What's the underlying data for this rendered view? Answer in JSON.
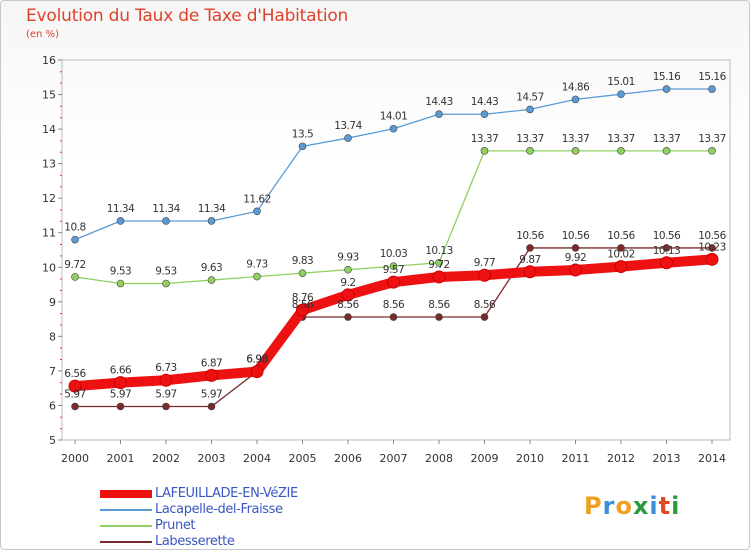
{
  "title": "Evolution du Taux de Taxe d'Habitation",
  "subtitle": "(en %)",
  "logo": {
    "letters": [
      "P",
      "r",
      "o",
      "x",
      "i",
      "t",
      "i"
    ],
    "colors": [
      "#f0a020",
      "#3b8fd8",
      "#f0a020",
      "#2a9b3a",
      "#3b8fd8",
      "#e04a20",
      "#2a9b3a"
    ]
  },
  "chart_data": {
    "type": "line",
    "x": [
      "2000",
      "2001",
      "2002",
      "2003",
      "2004",
      "2005",
      "2006",
      "2007",
      "2008",
      "2009",
      "2010",
      "2011",
      "2012",
      "2013",
      "2014"
    ],
    "ylim": [
      5,
      16
    ],
    "yticks": [
      "5",
      "6",
      "7",
      "8",
      "9",
      "10",
      "11",
      "12",
      "13",
      "14",
      "15",
      "16"
    ],
    "grid": false,
    "legend_placement": "bottom-left",
    "series": [
      {
        "name": "LAFEUILLADE-EN-VéZIE",
        "color": "#ee1111",
        "values": [
          6.56,
          6.66,
          6.73,
          6.87,
          6.98,
          8.76,
          9.2,
          9.57,
          9.72,
          9.77,
          9.87,
          9.92,
          10.02,
          10.13,
          10.23
        ],
        "labels": [
          "6.56",
          "6.66",
          "6.73",
          "6.87",
          "6.98",
          "8.76",
          "9.2",
          "9.57",
          "9.72",
          "9.77",
          "9.87",
          "9.92",
          "10.02",
          "10.13",
          "10.23"
        ]
      },
      {
        "name": "Lacapelle-del-Fraisse",
        "color": "#5b9bd5",
        "values": [
          10.8,
          11.34,
          11.34,
          11.34,
          11.62,
          13.5,
          13.74,
          14.01,
          14.43,
          14.43,
          14.57,
          14.86,
          15.01,
          15.16,
          15.16
        ],
        "labels": [
          "10.8",
          "11.34",
          "11.34",
          "11.34",
          "11.62",
          "13.5",
          "13.74",
          "14.01",
          "14.43",
          "14.43",
          "14.57",
          "14.86",
          "15.01",
          "15.16",
          "15.16"
        ]
      },
      {
        "name": "Prunet",
        "color": "#90d060",
        "values": [
          9.72,
          9.53,
          9.53,
          9.63,
          9.73,
          9.83,
          9.93,
          10.03,
          10.13,
          13.37,
          13.37,
          13.37,
          13.37,
          13.37,
          13.37
        ],
        "labels": [
          "9.72",
          "9.53",
          "9.53",
          "9.63",
          "9.73",
          "9.83",
          "9.93",
          "10.03",
          "10.13",
          "13.37",
          "13.37",
          "13.37",
          "13.37",
          "13.37",
          "13.37"
        ]
      },
      {
        "name": "Labesserette",
        "color": "#7a2a2a",
        "values": [
          5.97,
          5.97,
          5.97,
          5.97,
          6.98,
          8.56,
          8.56,
          8.56,
          8.56,
          8.56,
          10.56,
          10.56,
          10.56,
          10.56,
          10.56
        ],
        "labels": [
          "5.97",
          "5.97",
          "5.97",
          "5.97",
          "6.98",
          "8.56",
          "8.56",
          "8.56",
          "8.56",
          "8.56",
          "10.56",
          "10.56",
          "10.56",
          "10.56",
          "10.56"
        ]
      }
    ]
  }
}
